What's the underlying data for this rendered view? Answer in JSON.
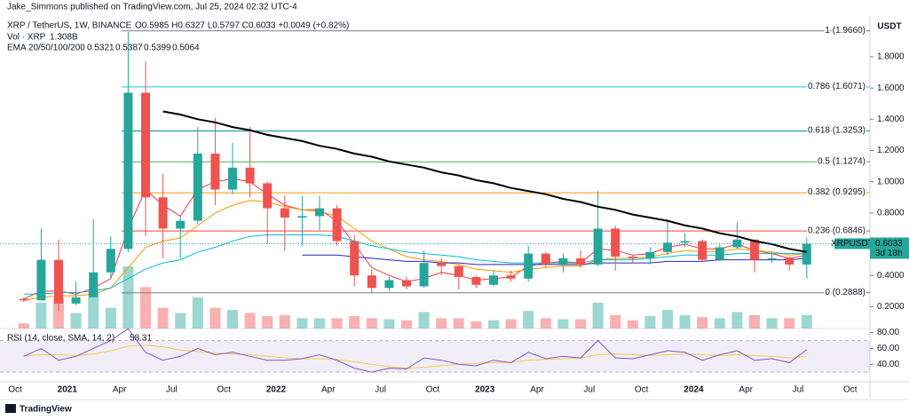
{
  "chart_data": {
    "type": "candlestick",
    "header": {
      "author": "Jake_Simmons published on TradingView.com, Jul 25, 2024 02:32 UTC-4",
      "symbol": "XRP / TetherUS, 1W, BINANCE",
      "ohlc_text": "O0.5985 H0.6327 L0.5797 C0.6033 +0.0049 (+0.82%)"
    },
    "axis_title": "USDT",
    "categories": [
      "Oct",
      null,
      null,
      "2021",
      null,
      null,
      "Apr",
      null,
      null,
      "Jul",
      null,
      null,
      "Oct",
      null,
      null,
      "2022",
      null,
      null,
      "Apr",
      null,
      null,
      "Jul",
      null,
      null,
      "Oct",
      null,
      null,
      "2023",
      null,
      null,
      "Apr",
      null,
      null,
      "Jul",
      null,
      null,
      "Oct",
      null,
      null,
      "2024",
      null,
      null,
      "Apr",
      null,
      null,
      "Jul",
      null,
      null,
      "Oct"
    ],
    "up_color": "#26a69a",
    "down_color": "#ef5350",
    "open": [
      0.25,
      0.24,
      0.5,
      0.22,
      0.26,
      0.42,
      0.57,
      1.57,
      0.9,
      0.7,
      0.75,
      1.18,
      0.95,
      1.09,
      0.99,
      0.83,
      0.77,
      0.78,
      0.83,
      0.62,
      0.4,
      0.32,
      0.37,
      0.33,
      0.48,
      0.46,
      0.39,
      0.34,
      0.4,
      0.38,
      0.54,
      0.47,
      0.51,
      0.47,
      0.7,
      0.52,
      0.51,
      0.55,
      0.61,
      0.62,
      0.5,
      0.58,
      0.63,
      0.5,
      0.51,
      0.47,
      null,
      null,
      null
    ],
    "high": [
      0.26,
      0.7,
      0.63,
      0.36,
      0.76,
      0.65,
      1.96,
      1.77,
      1.05,
      0.78,
      1.35,
      1.41,
      1.25,
      1.35,
      1.0,
      0.91,
      0.91,
      0.91,
      0.85,
      0.66,
      0.44,
      0.39,
      0.39,
      0.56,
      0.51,
      0.47,
      0.4,
      0.43,
      0.43,
      0.59,
      0.55,
      0.54,
      0.56,
      0.94,
      0.72,
      0.53,
      0.58,
      0.75,
      0.67,
      0.63,
      0.6,
      0.74,
      0.63,
      0.55,
      0.52,
      0.64,
      null,
      null,
      null
    ],
    "low": [
      0.23,
      0.24,
      0.17,
      0.21,
      0.26,
      0.38,
      0.55,
      0.65,
      0.51,
      0.51,
      0.73,
      0.85,
      0.92,
      0.9,
      0.6,
      0.56,
      0.59,
      0.69,
      0.59,
      0.33,
      0.29,
      0.3,
      0.31,
      0.32,
      0.4,
      0.31,
      0.32,
      0.33,
      0.36,
      0.36,
      0.45,
      0.42,
      0.45,
      0.46,
      0.43,
      0.48,
      0.47,
      0.53,
      0.58,
      0.49,
      0.49,
      0.57,
      0.42,
      0.48,
      0.43,
      0.38,
      null,
      null,
      null
    ],
    "close": [
      0.24,
      0.5,
      0.22,
      0.26,
      0.42,
      0.57,
      1.57,
      0.9,
      0.7,
      0.75,
      1.18,
      0.95,
      1.09,
      0.99,
      0.83,
      0.77,
      0.78,
      0.83,
      0.62,
      0.4,
      0.32,
      0.37,
      0.33,
      0.48,
      0.46,
      0.39,
      0.34,
      0.4,
      0.38,
      0.54,
      0.47,
      0.51,
      0.47,
      0.7,
      0.52,
      0.51,
      0.55,
      0.61,
      0.62,
      0.5,
      0.58,
      0.63,
      0.5,
      0.51,
      0.47,
      0.6033,
      null,
      null,
      null
    ],
    "ylim": [
      0.06,
      2.05
    ],
    "yticks": [
      {
        "value": 0.2,
        "label": "0.2000"
      },
      {
        "value": 0.4,
        "label": "0.4000"
      },
      {
        "value": 0.6,
        "label": "0.6000"
      },
      {
        "value": 0.8,
        "label": "0.8000"
      },
      {
        "value": 1.0,
        "label": "1.0000"
      },
      {
        "value": 1.2,
        "label": "1.2000"
      },
      {
        "value": 1.4,
        "label": "1.4000"
      },
      {
        "value": 1.6,
        "label": "1.6000"
      },
      {
        "value": 1.8,
        "label": "1.8000"
      }
    ],
    "volume": {
      "name": "Vol · XRP",
      "last": "1.308B",
      "values": [
        0.5,
        2.5,
        3,
        1.5,
        3.5,
        2,
        6,
        4,
        2,
        1.5,
        3,
        2,
        1.8,
        1.5,
        1.2,
        1.3,
        1,
        1,
        1,
        1.2,
        1,
        0.9,
        0.8,
        1.6,
        1,
        1,
        0.7,
        0.8,
        0.9,
        1.7,
        1,
        0.9,
        0.9,
        2.5,
        1.3,
        0.8,
        1.2,
        1.8,
        1.3,
        1.1,
        1,
        1.6,
        1.3,
        1,
        1,
        1.308,
        null,
        null,
        null
      ]
    },
    "ema": {
      "label": "EMA 20/50/100/200",
      "series": [
        {
          "color": "#f23645",
          "last": "0.5321",
          "values": [
            0.25,
            0.3,
            0.3,
            0.28,
            0.32,
            0.38,
            0.7,
            0.95,
            0.85,
            0.78,
            0.95,
            1.0,
            1.02,
            1.0,
            0.92,
            0.85,
            0.82,
            0.82,
            0.75,
            0.6,
            0.45,
            0.4,
            0.36,
            0.38,
            0.42,
            0.4,
            0.37,
            0.38,
            0.39,
            0.46,
            0.48,
            0.49,
            0.48,
            0.57,
            0.56,
            0.53,
            0.54,
            0.58,
            0.6,
            0.57,
            0.57,
            0.6,
            0.56,
            0.54,
            0.51,
            0.53,
            null,
            null,
            null
          ]
        },
        {
          "color": "#ff9800",
          "last": "0.5387",
          "values": [
            0.24,
            0.26,
            0.27,
            0.27,
            0.28,
            0.32,
            0.45,
            0.58,
            0.62,
            0.64,
            0.72,
            0.8,
            0.85,
            0.88,
            0.87,
            0.84,
            0.82,
            0.81,
            0.78,
            0.7,
            0.62,
            0.57,
            0.52,
            0.5,
            0.49,
            0.47,
            0.44,
            0.43,
            0.42,
            0.44,
            0.45,
            0.46,
            0.46,
            0.5,
            0.51,
            0.51,
            0.52,
            0.54,
            0.56,
            0.55,
            0.55,
            0.57,
            0.56,
            0.55,
            0.53,
            0.54,
            null,
            null,
            null
          ]
        },
        {
          "color": "#00bcd4",
          "last": "0.5399",
          "values": [
            0.28,
            0.28,
            0.29,
            0.29,
            0.3,
            0.32,
            0.38,
            0.44,
            0.48,
            0.5,
            0.55,
            0.58,
            0.62,
            0.65,
            0.66,
            0.66,
            0.66,
            0.66,
            0.65,
            0.62,
            0.59,
            0.57,
            0.55,
            0.54,
            0.53,
            0.52,
            0.5,
            0.49,
            0.48,
            0.48,
            0.48,
            0.48,
            0.48,
            0.5,
            0.5,
            0.5,
            0.51,
            0.52,
            0.53,
            0.53,
            0.53,
            0.54,
            0.54,
            0.54,
            0.54,
            0.54,
            null,
            null,
            null
          ]
        },
        {
          "color": "#2424c8",
          "last": "0.5064",
          "values": [
            null,
            null,
            null,
            null,
            null,
            null,
            null,
            null,
            null,
            null,
            null,
            null,
            null,
            null,
            null,
            null,
            0.53,
            0.53,
            0.53,
            0.52,
            0.51,
            0.5,
            0.49,
            0.49,
            0.48,
            0.48,
            0.47,
            0.47,
            0.47,
            0.47,
            0.47,
            0.47,
            0.47,
            0.48,
            0.48,
            0.48,
            0.48,
            0.49,
            0.49,
            0.49,
            0.5,
            0.5,
            0.5,
            0.5,
            0.5,
            0.51,
            null,
            null,
            null
          ]
        }
      ]
    },
    "trendline": {
      "color": "#000000",
      "values": [
        null,
        null,
        null,
        null,
        null,
        null,
        null,
        null,
        1.45,
        1.43,
        1.4,
        1.38,
        1.35,
        1.33,
        1.3,
        1.28,
        1.26,
        1.23,
        1.21,
        1.18,
        1.16,
        1.13,
        1.11,
        1.09,
        1.06,
        1.04,
        1.01,
        0.99,
        0.96,
        0.94,
        0.92,
        0.89,
        0.87,
        0.84,
        0.82,
        0.79,
        0.77,
        0.75,
        0.72,
        0.7,
        0.67,
        0.65,
        0.62,
        0.6,
        0.57,
        0.55,
        null,
        null,
        null
      ]
    },
    "fib_levels": [
      {
        "label": "1 (1.9660)",
        "value": 1.966,
        "color": "#787b86"
      },
      {
        "label": "0.786 (1.6071)",
        "value": 1.6071,
        "color": "#26c6da"
      },
      {
        "label": "0.618 (1.3253)",
        "value": 1.3253,
        "color": "#009688"
      },
      {
        "label": "0.5 (1.1274)",
        "value": 1.1274,
        "color": "#4caf50"
      },
      {
        "label": "0.382 (0.9295)",
        "value": 0.9295,
        "color": "#ff9800"
      },
      {
        "label": "0.236 (0.6846)",
        "value": 0.6846,
        "color": "#f44336"
      },
      {
        "label": "0 (0.2888)",
        "value": 0.2888,
        "color": "#787b86"
      }
    ],
    "price_tag": {
      "symbol": "XRPUSDT",
      "value": 0.6033,
      "countdown": "3d 18h",
      "color": "#26a69a"
    },
    "rsi": {
      "label": "RSI (14, close, SMA, 14, 2)",
      "last": "58.31",
      "color": "#7e57c2",
      "ma_color": "#f7c948",
      "band": [
        30,
        70
      ],
      "ylim": [
        20,
        84
      ],
      "yticks": [
        {
          "value": 40,
          "label": "40.00"
        },
        {
          "value": 60,
          "label": "60.00"
        },
        {
          "value": 80,
          "label": "80.00"
        }
      ],
      "values": [
        50,
        60,
        45,
        50,
        60,
        70,
        85,
        55,
        45,
        50,
        60,
        52,
        55,
        50,
        45,
        45,
        47,
        52,
        45,
        35,
        30,
        35,
        34,
        48,
        45,
        40,
        38,
        45,
        42,
        55,
        47,
        50,
        48,
        70,
        48,
        47,
        52,
        57,
        55,
        45,
        52,
        57,
        45,
        47,
        42,
        58.31,
        null,
        null,
        null
      ],
      "ma_values": [
        50,
        52,
        52,
        51,
        53,
        57,
        63,
        64,
        62,
        58,
        56,
        54,
        53,
        52,
        50,
        48,
        47,
        47,
        46,
        43,
        40,
        37,
        35,
        36,
        38,
        40,
        41,
        42,
        42,
        45,
        46,
        47,
        48,
        52,
        53,
        52,
        51,
        52,
        53,
        52,
        51,
        52,
        51,
        50,
        48,
        50,
        null,
        null,
        null
      ]
    },
    "footer": "TradingView"
  }
}
